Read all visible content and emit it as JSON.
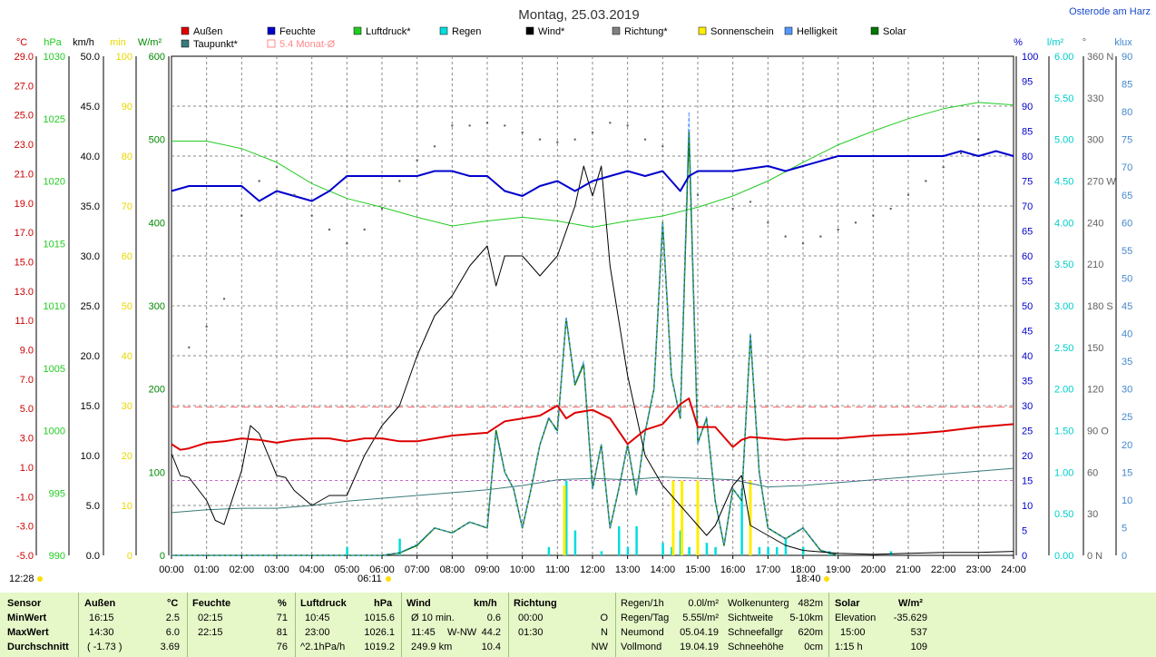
{
  "title": "Montag, 25.03.2019",
  "station": "Osterode am Harz",
  "legend": [
    {
      "label": "Außen",
      "color": "#dd0000"
    },
    {
      "label": "Taupunkt*",
      "color": "#3a7a7a"
    },
    {
      "label": "Feuchte",
      "color": "#0000cc"
    },
    {
      "label": "5.4 Monat-Ø",
      "color": "#ff8888"
    },
    {
      "label": "Luftdruck*",
      "color": "#22cc22"
    },
    {
      "label": "Regen",
      "color": "#00dddd"
    },
    {
      "label": "Wind*",
      "color": "#000000"
    },
    {
      "label": "Richtung*",
      "color": "#808080"
    },
    {
      "label": "Sonnenschein",
      "color": "#ffee00"
    },
    {
      "label": "Helligkeit",
      "color": "#5599ff"
    },
    {
      "label": "Solar",
      "color": "#007700"
    }
  ],
  "left_axes": [
    {
      "unit": "°C",
      "color": "#cc0000",
      "ticks": [
        "29.0",
        "27.0",
        "25.0",
        "23.0",
        "21.0",
        "19.0",
        "17.0",
        "15.0",
        "13.0",
        "11.0",
        "9.0",
        "7.0",
        "5.0",
        "3.0",
        "1.0",
        "-1.0",
        "-3.0",
        "-5.0"
      ]
    },
    {
      "unit": "hPa",
      "color": "#22cc22",
      "ticks": [
        "1030",
        "1025",
        "1020",
        "1015",
        "1010",
        "1005",
        "1000",
        "995",
        "990"
      ]
    },
    {
      "unit": "km/h",
      "color": "#000000",
      "ticks": [
        "50.0",
        "45.0",
        "40.0",
        "35.0",
        "30.0",
        "25.0",
        "20.0",
        "15.0",
        "10.0",
        "5.0",
        "0.0"
      ]
    },
    {
      "unit": "min",
      "color": "#e8d800",
      "ticks": [
        "100",
        "90",
        "80",
        "70",
        "60",
        "50",
        "40",
        "30",
        "20",
        "10",
        "0"
      ]
    },
    {
      "unit": "W/m²",
      "color": "#008800",
      "ticks": [
        "600",
        "500",
        "400",
        "300",
        "200",
        "100",
        "0"
      ]
    }
  ],
  "right_axes": [
    {
      "unit": "%",
      "color": "#0000cc",
      "ticks": [
        "100",
        "95",
        "90",
        "85",
        "80",
        "75",
        "70",
        "65",
        "60",
        "55",
        "50",
        "45",
        "40",
        "35",
        "30",
        "25",
        "20",
        "15",
        "10",
        "5",
        "0"
      ]
    },
    {
      "unit": "l/m²",
      "color": "#00cccc",
      "ticks": [
        "6.00",
        "5.50",
        "5.00",
        "4.50",
        "4.00",
        "3.50",
        "3.00",
        "2.50",
        "2.00",
        "1.50",
        "1.00",
        "0.50",
        "0.00"
      ]
    },
    {
      "unit": "°",
      "color": "#606060",
      "ticks": [
        "360 N",
        "330",
        "300",
        "270 W",
        "240",
        "210",
        "180 S",
        "150",
        "120",
        "90 O",
        "60",
        "30",
        "0 N"
      ]
    },
    {
      "unit": "klux",
      "color": "#4488cc",
      "ticks": [
        "90",
        "85",
        "80",
        "75",
        "70",
        "65",
        "60",
        "55",
        "50",
        "45",
        "40",
        "35",
        "30",
        "25",
        "20",
        "15",
        "10",
        "5",
        "0"
      ]
    }
  ],
  "x_ticks": [
    "00:00",
    "01:00",
    "02:00",
    "03:00",
    "04:00",
    "05:00",
    "06:00",
    "07:00",
    "08:00",
    "09:00",
    "10:00",
    "11:00",
    "12:00",
    "13:00",
    "14:00",
    "15:00",
    "16:00",
    "17:00",
    "18:00",
    "19:00",
    "20:00",
    "21:00",
    "22:00",
    "23:00",
    "24:00"
  ],
  "below_axis": {
    "time_left": "12:28",
    "sunrise": "06:11",
    "sunset": "18:40"
  },
  "chart_data": {
    "type": "line",
    "title": "Montag, 25.03.2019",
    "x_unit": "hour of day",
    "xlim": [
      0,
      24
    ],
    "grid": true,
    "reference_lines": [
      {
        "name": "5.4 Monat-Ø",
        "axis": "°C",
        "value": 5.4
      },
      {
        "axis": "%",
        "value": 15
      }
    ],
    "series": [
      {
        "name": "Außen",
        "axis": "°C",
        "ylim": [
          -5,
          30
        ],
        "x": [
          0,
          0.25,
          0.5,
          1,
          1.5,
          2,
          2.5,
          3,
          3.5,
          4,
          4.5,
          5,
          5.5,
          6,
          6.5,
          7,
          7.5,
          8,
          8.5,
          9,
          9.5,
          10,
          10.5,
          11,
          11.25,
          11.5,
          12,
          12.5,
          13,
          13.5,
          14,
          14.5,
          14.75,
          15,
          15.5,
          16,
          16.25,
          16.5,
          17,
          17.5,
          18,
          19,
          20,
          21,
          22,
          23,
          24
        ],
        "y": [
          2.8,
          2.4,
          2.5,
          2.9,
          3.0,
          3.2,
          3.1,
          2.9,
          3.1,
          3.2,
          3.2,
          3.0,
          3.2,
          3.2,
          3.0,
          3.0,
          3.2,
          3.4,
          3.5,
          3.6,
          4.4,
          4.6,
          4.8,
          5.5,
          4.6,
          5.0,
          5.2,
          4.6,
          2.8,
          3.8,
          4.2,
          5.6,
          6.0,
          4.0,
          4.0,
          2.6,
          3.1,
          3.3,
          3.2,
          3.1,
          3.2,
          3.2,
          3.4,
          3.5,
          3.7,
          4.0,
          4.2
        ]
      },
      {
        "name": "Taupunkt*",
        "axis": "°C",
        "ylim": [
          -5,
          30
        ],
        "x": [
          0,
          1,
          2,
          3,
          4,
          5,
          6,
          7,
          8,
          9,
          10,
          11,
          12,
          13,
          14,
          15,
          16,
          17,
          18,
          19,
          20,
          21,
          22,
          23,
          24
        ],
        "y": [
          -2.0,
          -1.8,
          -1.7,
          -1.7,
          -1.5,
          -1.2,
          -1.0,
          -0.8,
          -0.6,
          -0.4,
          -0.1,
          0.3,
          0.4,
          0.3,
          0.5,
          0.4,
          0.3,
          -0.2,
          -0.1,
          0.1,
          0.3,
          0.5,
          0.7,
          0.9,
          1.1
        ]
      },
      {
        "name": "Feuchte",
        "axis": "%",
        "ylim": [
          0,
          100
        ],
        "x": [
          0,
          0.5,
          1,
          2,
          2.5,
          3,
          3.5,
          4,
          4.5,
          5,
          5.5,
          6,
          7,
          7.5,
          8,
          8.5,
          9,
          9.5,
          10,
          10.5,
          11,
          11.5,
          12,
          12.5,
          13,
          13.5,
          14,
          14.25,
          14.5,
          14.75,
          15,
          16,
          17,
          17.5,
          18,
          19,
          20,
          21,
          22,
          22.5,
          23,
          23.5,
          24
        ],
        "y": [
          73,
          74,
          74,
          74,
          71,
          73,
          72,
          71,
          73,
          76,
          76,
          76,
          76,
          77,
          77,
          76,
          76,
          73,
          72,
          74,
          75,
          73,
          75,
          76,
          77,
          76,
          77,
          75,
          73,
          76,
          77,
          77,
          78,
          77,
          78,
          80,
          80,
          80,
          80,
          81,
          80,
          81,
          80
        ]
      },
      {
        "name": "Luftdruck*",
        "axis": "hPa",
        "ylim": [
          990,
          1030
        ],
        "x": [
          0,
          1,
          2,
          3,
          4,
          5,
          6,
          7,
          8,
          9,
          10,
          11,
          12,
          13,
          14,
          15,
          16,
          17,
          18,
          19,
          20,
          21,
          22,
          23,
          24
        ],
        "y": [
          1023.2,
          1023.2,
          1022.6,
          1021.5,
          1019.8,
          1018.6,
          1017.9,
          1017.1,
          1016.4,
          1016.8,
          1017.1,
          1016.8,
          1016.3,
          1016.8,
          1017.2,
          1017.9,
          1018.8,
          1020.0,
          1021.5,
          1022.9,
          1024.0,
          1025.0,
          1025.8,
          1026.3,
          1026.1
        ]
      },
      {
        "name": "Wind*",
        "axis": "km/h",
        "ylim": [
          0,
          50
        ],
        "x": [
          0,
          0.25,
          0.5,
          1,
          1.25,
          1.5,
          2,
          2.25,
          2.5,
          3,
          3.25,
          3.5,
          4,
          4.25,
          4.5,
          5,
          5.25,
          5.5,
          6,
          6.5,
          7,
          7.5,
          8,
          8.5,
          9,
          9.25,
          9.5,
          10,
          10.5,
          11,
          11.5,
          11.75,
          12,
          12.25,
          12.5,
          13,
          13.5,
          14,
          14.5,
          15,
          15.25,
          15.5,
          16,
          16.25,
          16.5,
          17,
          17.5,
          18,
          19,
          20,
          21,
          22,
          23,
          24
        ],
        "y": [
          10.2,
          8,
          7.8,
          5.5,
          3.5,
          3.1,
          8.5,
          13.0,
          12.2,
          8,
          7.8,
          6.5,
          5.0,
          5.5,
          6.0,
          6.0,
          8,
          10,
          13,
          15,
          20,
          24,
          26,
          29,
          31,
          27,
          30,
          30,
          28,
          30,
          35,
          39,
          36,
          39,
          29,
          18,
          10,
          7,
          5,
          3,
          2,
          3,
          7,
          8,
          3,
          2,
          1,
          0.5,
          0.2,
          0.1,
          0.2,
          0.3,
          0.3,
          0.4
        ]
      },
      {
        "name": "Regen",
        "axis": "l/m²",
        "ylim": [
          0,
          6
        ],
        "type": "bar",
        "x": [
          5,
          6.5,
          10.75,
          11.25,
          11.5,
          12.25,
          12.75,
          13,
          13.25,
          14,
          14.25,
          14.5,
          14.75,
          15,
          15.25,
          15.5,
          16.25,
          16.5,
          16.75,
          17,
          17.25,
          17.5,
          18,
          18.75,
          20.5
        ],
        "y": [
          0.1,
          0.2,
          0.1,
          0.9,
          0.3,
          0.05,
          0.35,
          0.1,
          0.35,
          0.15,
          0.1,
          0.3,
          0.1,
          0.7,
          0.15,
          0.1,
          0.8,
          0.15,
          0.1,
          0.1,
          0.1,
          0.2,
          0.1,
          0.05,
          0.05
        ]
      },
      {
        "name": "Richtung*",
        "axis": "°",
        "type": "scatter",
        "ylim": [
          0,
          360
        ],
        "x": [
          0.5,
          1.0,
          1.5,
          2.0,
          2.5,
          3.0,
          3.5,
          4.0,
          4.5,
          5.0,
          5.5,
          6.0,
          6.5,
          7.0,
          7.5,
          8.0,
          8.5,
          9.0,
          9.5,
          10.0,
          10.5,
          11.0,
          11.5,
          12.0,
          12.5,
          13.0,
          13.5,
          14.0,
          15.0,
          16.0,
          16.5,
          17.0,
          17.5,
          18.0,
          18.5,
          19.0,
          19.5,
          20.0,
          20.5,
          21.0,
          21.5,
          22.0,
          22.5,
          23.0
        ],
        "y": [
          150,
          165,
          185,
          245,
          270,
          280,
          260,
          245,
          235,
          225,
          235,
          250,
          270,
          285,
          295,
          310,
          310,
          312,
          310,
          305,
          300,
          298,
          300,
          305,
          312,
          310,
          300,
          295,
          260,
          250,
          255,
          240,
          230,
          225,
          230,
          235,
          240,
          245,
          250,
          260,
          270,
          280,
          290,
          300
        ]
      },
      {
        "name": "Sonnenschein",
        "axis": "min",
        "type": "bar",
        "x": [
          11.2,
          14.3,
          14.55,
          15.0,
          16.5
        ],
        "y": [
          14,
          15,
          15,
          15,
          15
        ]
      },
      {
        "name": "Helligkeit",
        "axis": "klux",
        "ylim": [
          0,
          90
        ],
        "x": [
          0,
          5,
          6,
          6.5,
          7,
          7.5,
          8,
          8.5,
          9,
          9.25,
          9.5,
          9.75,
          10,
          10.25,
          10.5,
          10.75,
          11,
          11.25,
          11.5,
          11.75,
          12,
          12.25,
          12.5,
          12.75,
          13,
          13.25,
          13.5,
          13.75,
          14,
          14.25,
          14.5,
          14.75,
          15,
          15.25,
          15.5,
          15.75,
          16,
          16.25,
          16.5,
          16.75,
          17,
          17.5,
          18,
          18.5,
          19
        ],
        "y": [
          0,
          0,
          0,
          0.5,
          2,
          5,
          4,
          6,
          5,
          22,
          15,
          12,
          5,
          12,
          20,
          25,
          22,
          43,
          31,
          35,
          12,
          20,
          5,
          12,
          20,
          11,
          22,
          30,
          60,
          32,
          25,
          80,
          20,
          25,
          10,
          2,
          12,
          10,
          40,
          15,
          5,
          3,
          5,
          1,
          0
        ]
      },
      {
        "name": "Solar",
        "axis": "W/m²",
        "ylim": [
          0,
          600
        ],
        "x": [
          0,
          5,
          6,
          6.5,
          7,
          7.5,
          8,
          8.5,
          9,
          9.25,
          9.5,
          9.75,
          10,
          10.25,
          10.5,
          10.75,
          11,
          11.25,
          11.5,
          11.75,
          12,
          12.25,
          12.5,
          12.75,
          13,
          13.25,
          13.5,
          13.75,
          14,
          14.25,
          14.5,
          14.75,
          15,
          15.25,
          15.5,
          15.75,
          16,
          16.25,
          16.5,
          16.75,
          17,
          17.5,
          18,
          18.5,
          19
        ],
        "y": [
          0,
          0,
          0,
          3,
          12,
          33,
          27,
          40,
          33,
          150,
          100,
          80,
          33,
          80,
          133,
          165,
          150,
          285,
          205,
          230,
          80,
          133,
          33,
          80,
          133,
          73,
          148,
          200,
          400,
          215,
          165,
          510,
          135,
          165,
          65,
          12,
          80,
          66,
          265,
          100,
          33,
          20,
          33,
          6,
          0
        ]
      }
    ]
  },
  "summary": {
    "row_labels": [
      "Sensor",
      "MinWert",
      "MaxWert",
      "Durchschnitt"
    ],
    "aussen": {
      "title": "Außen",
      "unit": "°C",
      "min_time": "16:15",
      "min_val": "2.5",
      "max_time": "14:30",
      "max_val": "6.0",
      "avg_note": "( -1.73 )",
      "avg_val": "3.69"
    },
    "feuchte": {
      "title": "Feuchte",
      "unit": "%",
      "min_time": "02:15",
      "min_val": "71",
      "max_time": "22:15",
      "max_val": "81",
      "avg_val": "76"
    },
    "luftdruck": {
      "title": "Luftdruck",
      "unit": "hPa",
      "min_time": "10:45",
      "min_val": "1015.6",
      "max_time": "23:00",
      "max_val": "1026.1",
      "avg_note": "^2.1hPa/h",
      "avg_val": "1019.2"
    },
    "wind": {
      "title": "Wind",
      "unit": "km/h",
      "min_label": "Ø 10 min.",
      "min_val": "0.6",
      "max_time": "11:45",
      "max_dir": "W-NW",
      "max_val": "44.2",
      "avg_label": "249.9 km",
      "avg_val": "10.4"
    },
    "richtung": {
      "title": "Richtung",
      "min_time": "00:00",
      "min_val": "O",
      "max_time": "01:30",
      "max_val": "N",
      "avg_val": "NW"
    },
    "regen": {
      "rows": [
        [
          "Regen/1h",
          "0.0l/m²"
        ],
        [
          "Regen/Tag",
          "5.55l/m²"
        ],
        [
          "Neumond",
          "05.04.19"
        ],
        [
          "Vollmond",
          "19.04.19"
        ]
      ]
    },
    "wolken": {
      "rows": [
        [
          "Wolkenunterg",
          "482m"
        ],
        [
          "Sichtweite",
          "5-10km"
        ],
        [
          "Schneefallgr",
          "620m"
        ],
        [
          "Schneehöhe",
          "0cm"
        ]
      ]
    },
    "solar": {
      "title": "Solar",
      "unit": "W/m²",
      "rows": [
        [
          "Elevation",
          "-35.629"
        ],
        [
          "15:00",
          "537"
        ],
        [
          "1:15 h",
          "109"
        ]
      ]
    }
  },
  "colors": {
    "grid": "#888888",
    "plot_border": "#000000",
    "summary_bg": "#e6f7c8",
    "dashed_purple": "#cc66cc"
  }
}
